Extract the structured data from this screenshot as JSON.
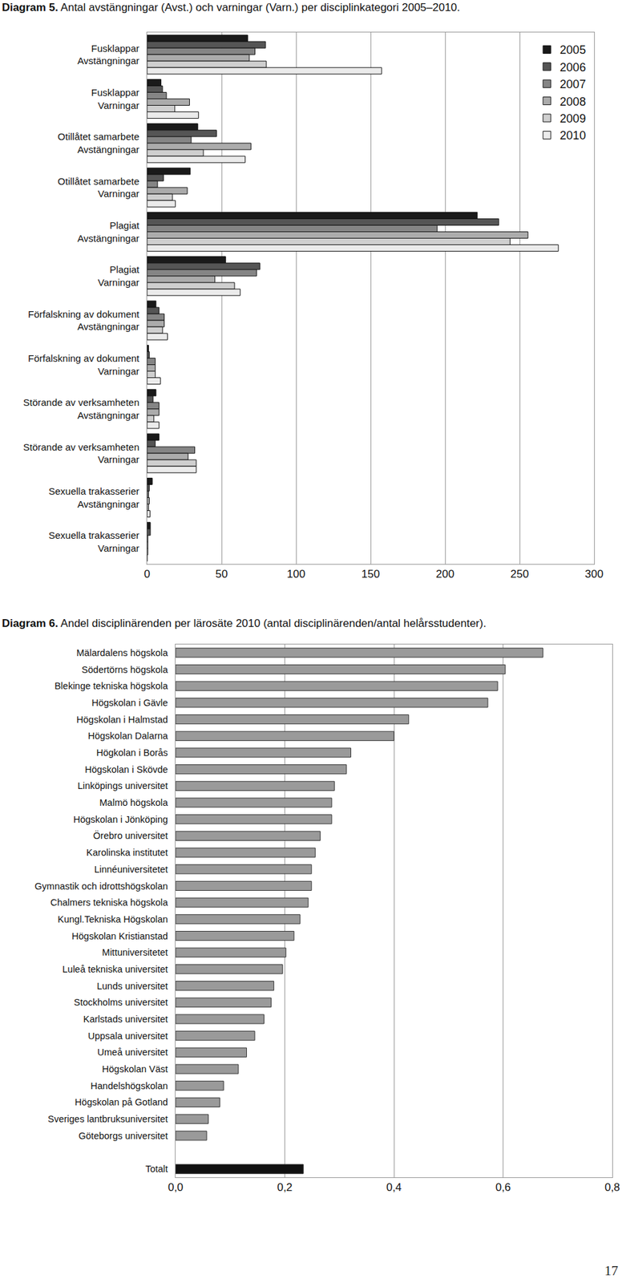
{
  "page_number": "17",
  "chart_data": [
    {
      "type": "bar",
      "title": "Diagram 5. Antal avstängningar (Avst.) och varningar (Varn.) per disciplinkategori 2005–2010.",
      "orientation": "horizontal",
      "categories": [
        "Fusklappar\nAvstängningar",
        "Fusklappar\nVarningar",
        "Otillåtet samarbete\nAvstängningar",
        "Otillåtet samarbete\nVarningar",
        "Plagiat\nAvstängningar",
        "Plagiat\nVarningar",
        "Förfalskning av dokument\nAvstängningar",
        "Förfalskning av dokument\nVarningar",
        "Störande av verksamheten\nAvstängningar",
        "Störande av verksamheten\nVarningar",
        "Sexuella trakasserier\nAvstängningar",
        "Sexuella trakasserier\nVarningar"
      ],
      "series": [
        {
          "name": "2005",
          "color": "#1a1a1a",
          "values": [
            67.5,
            9.3,
            34,
            29,
            221.6,
            52.7,
            6,
            1,
            6,
            8,
            3.5,
            2.2
          ]
        },
        {
          "name": "2006",
          "color": "#555555",
          "values": [
            79.5,
            10.4,
            46.6,
            11,
            236,
            75.7,
            8,
            1.5,
            4,
            5.5,
            1.5,
            2.2
          ]
        },
        {
          "name": "2007",
          "color": "#858585",
          "values": [
            72.4,
            13,
            29.6,
            7,
            194.7,
            73.5,
            11.5,
            5.5,
            8,
            32,
            1,
            0.5
          ]
        },
        {
          "name": "2008",
          "color": "#ababab",
          "values": [
            68.6,
            28.5,
            69.7,
            27,
            255.6,
            45.5,
            11.5,
            5.5,
            8,
            27.5,
            1.5,
            0.5
          ]
        },
        {
          "name": "2009",
          "color": "#cfcfcf",
          "values": [
            80,
            18.6,
            37.8,
            17,
            243.6,
            58.7,
            10.4,
            5.5,
            4.5,
            33,
            1,
            0.5
          ]
        },
        {
          "name": "2010",
          "color": "#ebebeb",
          "values": [
            157.4,
            34.5,
            65.8,
            19,
            276,
            62.5,
            13.7,
            9,
            8,
            33,
            2,
            0
          ]
        }
      ],
      "xlim": [
        0,
        300
      ],
      "xticks": [
        0,
        50,
        100,
        150,
        200,
        250,
        300
      ],
      "grid": true,
      "legend": "top right"
    },
    {
      "type": "bar",
      "title": "Diagram 6. Andel disciplinärenden per lärosäte 2010 (antal disciplinärenden/antal helårsstudenter).",
      "orientation": "horizontal",
      "categories": [
        "Mälardalens högskola",
        "Södertörns högskola",
        "Blekinge tekniska högskola",
        "Högskolan i Gävle",
        "Högskolan i Halmstad",
        "Högskolan Dalarna",
        "Högkolan i Borås",
        "Högskolan i Skövde",
        "Linköpings universitet",
        "Malmö högskola",
        "Högskolan i Jönköping",
        "Örebro universitet",
        "Karolinska institutet",
        "Linnéuniversitetet",
        "Gymnastik och idrottshögskolan",
        "Chalmers tekniska högskola",
        "Kungl.Tekniska Högskolan",
        "Högskolan Kristianstad",
        "Mittuniversitetet",
        "Luleå tekniska universitet",
        "Lunds universitet",
        "Stockholms universitet",
        "Karlstads universitet",
        "Uppsala universitet",
        "Umeå universitet",
        "Högskolan Väst",
        "Handelshögskolan",
        "Högskolan på Gotland",
        "Sveriges lantbruksuniversitet",
        "Göteborgs universitet",
        null,
        "Totalt"
      ],
      "values": [
        0.673,
        0.604,
        0.59,
        0.572,
        0.427,
        0.4,
        0.321,
        0.313,
        0.291,
        0.286,
        0.286,
        0.265,
        0.256,
        0.249,
        0.249,
        0.243,
        0.228,
        0.217,
        0.202,
        0.196,
        0.18,
        0.175,
        0.162,
        0.145,
        0.13,
        0.115,
        0.088,
        0.081,
        0.06,
        0.057,
        null,
        0.234
      ],
      "colors": [
        "#9a9a9a",
        "#9a9a9a",
        "#9a9a9a",
        "#9a9a9a",
        "#9a9a9a",
        "#9a9a9a",
        "#9a9a9a",
        "#9a9a9a",
        "#9a9a9a",
        "#9a9a9a",
        "#9a9a9a",
        "#9a9a9a",
        "#9a9a9a",
        "#9a9a9a",
        "#9a9a9a",
        "#9a9a9a",
        "#9a9a9a",
        "#9a9a9a",
        "#9a9a9a",
        "#9a9a9a",
        "#9a9a9a",
        "#9a9a9a",
        "#9a9a9a",
        "#9a9a9a",
        "#9a9a9a",
        "#9a9a9a",
        "#9a9a9a",
        "#9a9a9a",
        "#9a9a9a",
        "#9a9a9a",
        "#9a9a9a",
        "#111111"
      ],
      "xlim": [
        0,
        0.8
      ],
      "xticks": [
        {
          "value": 0,
          "label": "0,0"
        },
        {
          "value": 0.2,
          "label": "0,2"
        },
        {
          "value": 0.4,
          "label": "0,4"
        },
        {
          "value": 0.6,
          "label": "0,6"
        },
        {
          "value": 0.8,
          "label": "0,8"
        }
      ],
      "grid": true
    }
  ]
}
